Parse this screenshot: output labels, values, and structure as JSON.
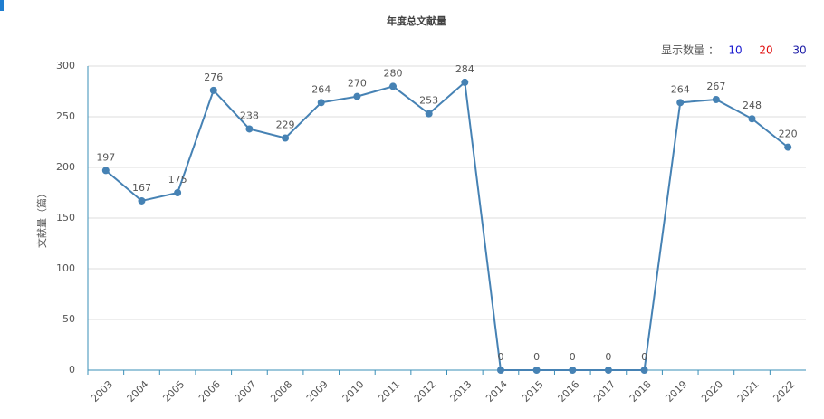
{
  "chart_data": {
    "type": "line",
    "title": "年度总文献量",
    "y_label": "文献量（篇）",
    "display_count": {
      "label": "显示数量 ：",
      "options": [
        10,
        20,
        30
      ]
    },
    "categories": [
      "2003",
      "2004",
      "2005",
      "2006",
      "2007",
      "2008",
      "2009",
      "2010",
      "2011",
      "2012",
      "2013",
      "2014",
      "2015",
      "2016",
      "2017",
      "2018",
      "2019",
      "2020",
      "2021",
      "2022"
    ],
    "values": [
      197,
      167,
      175,
      276,
      238,
      229,
      264,
      270,
      280,
      253,
      284,
      0,
      0,
      0,
      0,
      0,
      264,
      267,
      248,
      220
    ],
    "color": "#4682b4",
    "ylim": [
      0,
      300
    ],
    "yticks": [
      0,
      50,
      100,
      150,
      200,
      250,
      300
    ],
    "grid": true
  }
}
